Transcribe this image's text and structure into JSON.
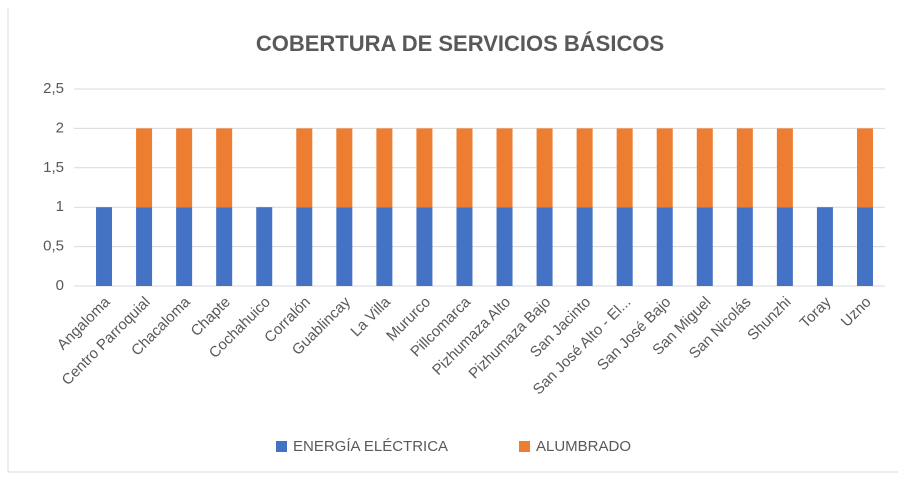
{
  "chart_data": {
    "type": "stacked_bar",
    "title": "COBERTURA DE SERVICIOS BÁSICOS",
    "categories": [
      "Angaloma",
      "Centro Parroquial",
      "Chacaloma",
      "Chapte",
      "Cochahuico",
      "Corralón",
      "Guablincay",
      "La Villa",
      "Mururco",
      "Pillcomarca",
      "Pizhumaza Alto",
      "Pizhumaza Bajo",
      "San Jacinto",
      "San José Alto - El...",
      "San José Bajo",
      "San Miguel",
      "San Nicolás",
      "Shunzhi",
      "Toray",
      "Uzno"
    ],
    "series": [
      {
        "name": "ENERGÍA ELÉCTRICA",
        "color": "#4472c4",
        "values": [
          1,
          1,
          1,
          1,
          1,
          1,
          1,
          1,
          1,
          1,
          1,
          1,
          1,
          1,
          1,
          1,
          1,
          1,
          1,
          1
        ]
      },
      {
        "name": "ALUMBRADO",
        "color": "#ed7d31",
        "values": [
          0,
          1,
          1,
          1,
          0,
          1,
          1,
          1,
          1,
          1,
          1,
          1,
          1,
          1,
          1,
          1,
          1,
          1,
          0,
          1
        ]
      }
    ],
    "ylim": [
      0,
      2.5
    ],
    "yticks": [
      0,
      {
        "value": 0.5,
        "label": "0,5"
      },
      1,
      {
        "value": 1.5,
        "label": "1,5"
      },
      2,
      {
        "value": 2.5,
        "label": "2,5"
      }
    ],
    "grid": true,
    "legend": "bottom"
  }
}
